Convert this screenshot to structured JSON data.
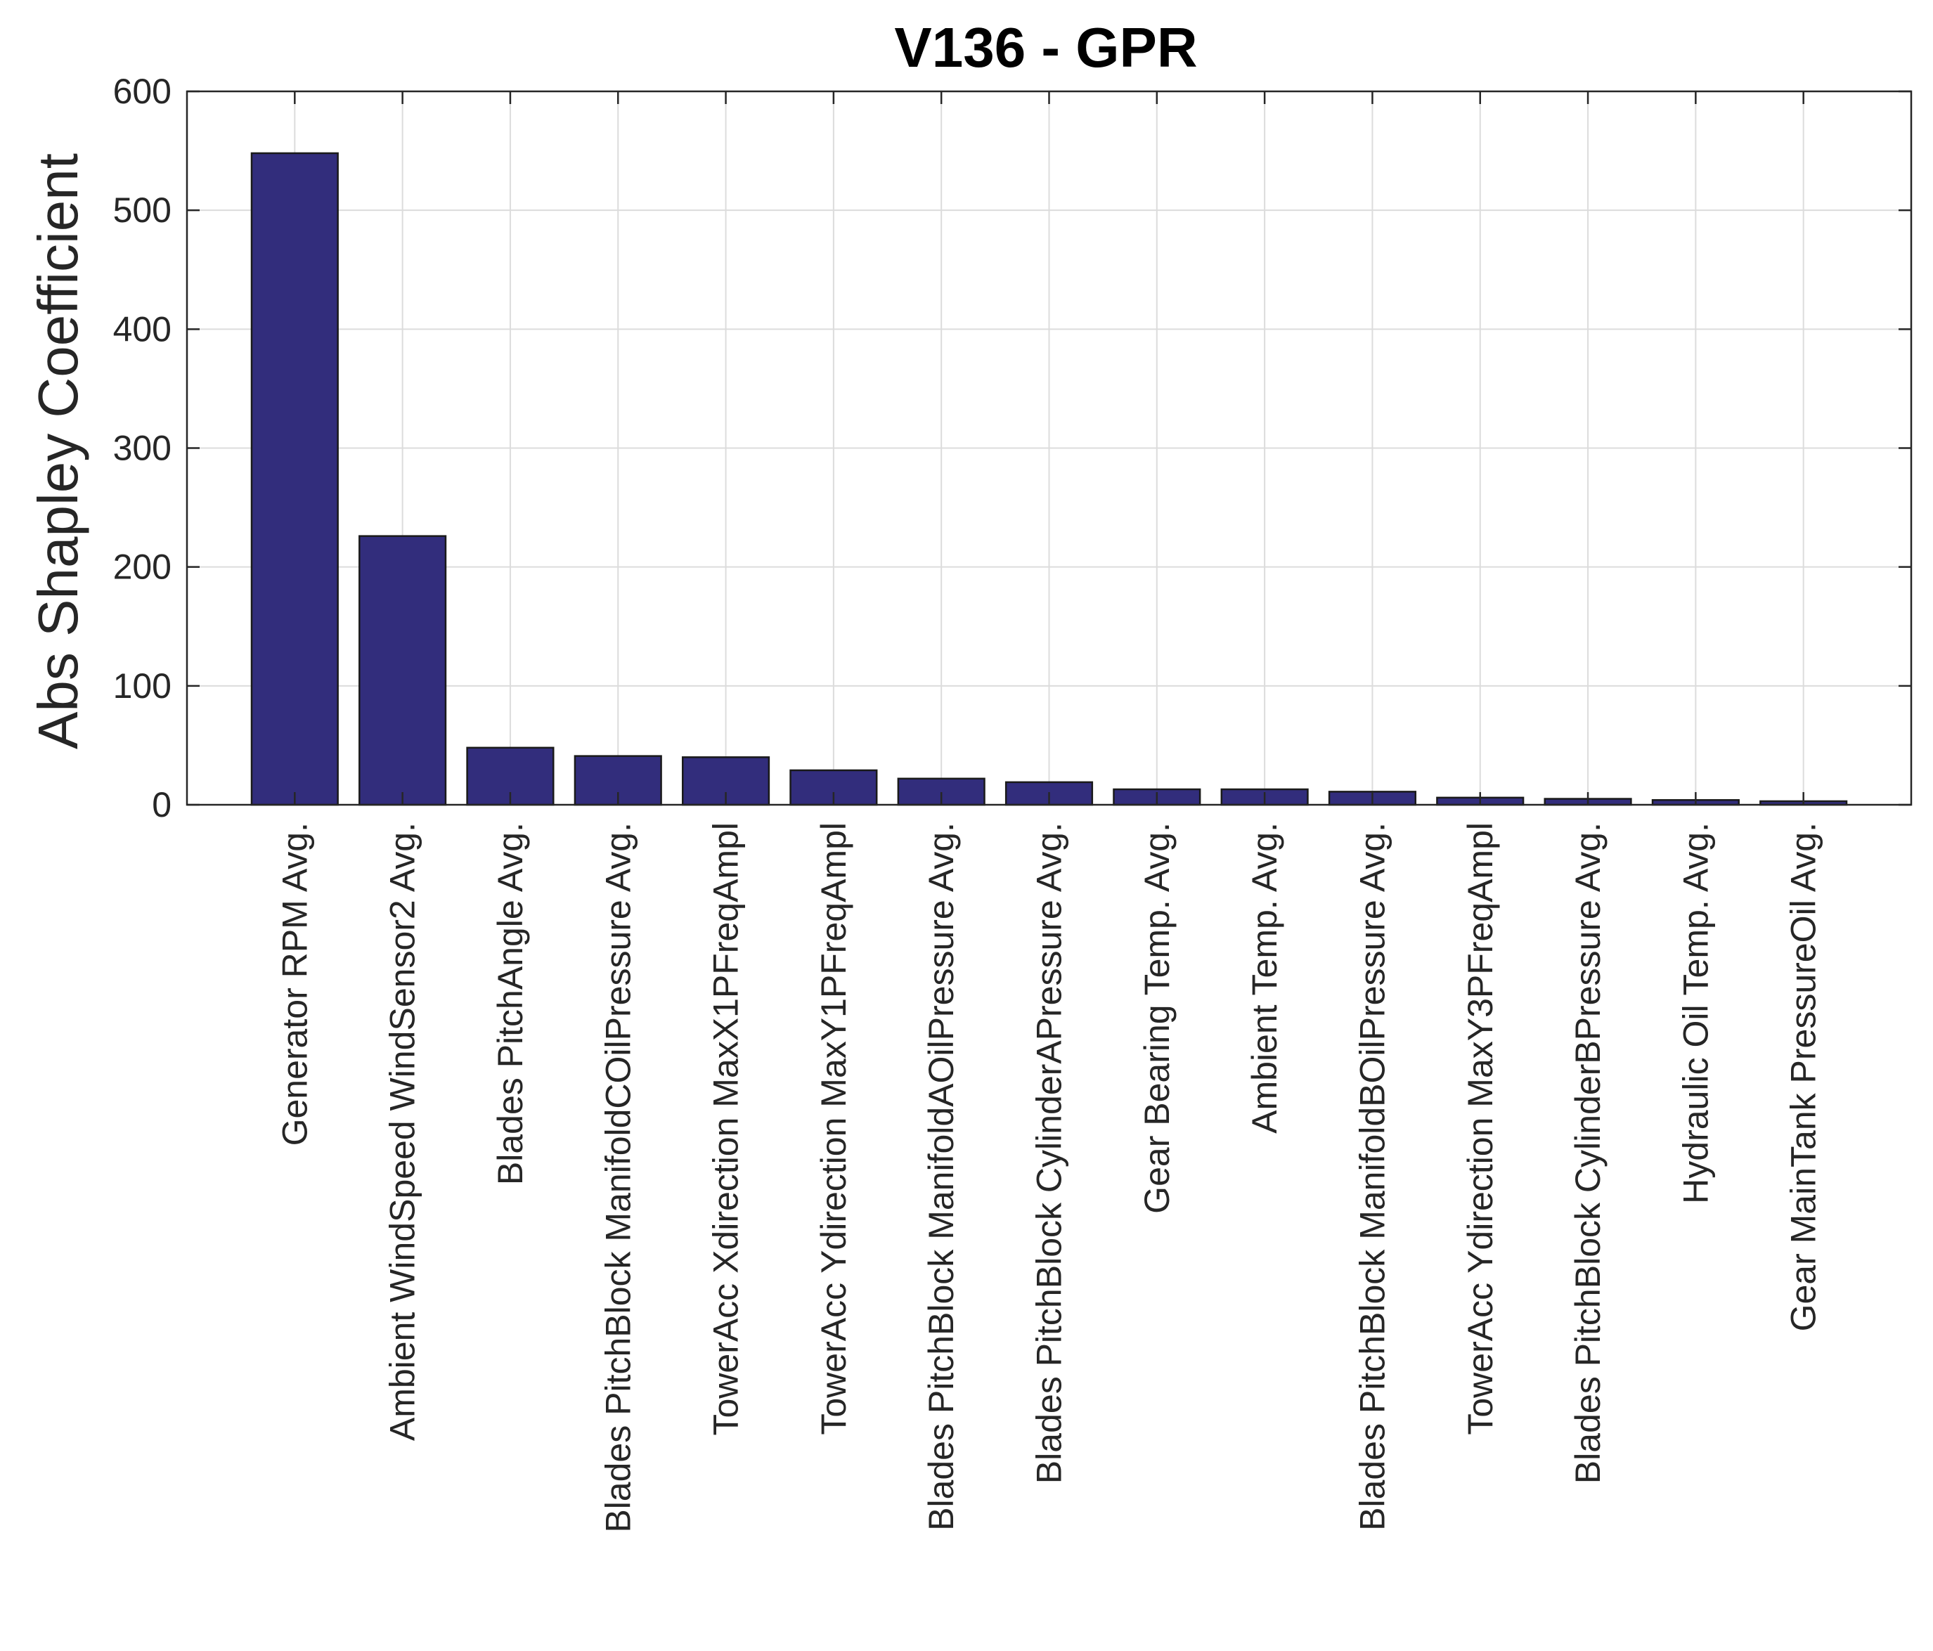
{
  "chart_data": {
    "type": "bar",
    "title": "V136 - GPR",
    "xlabel": "",
    "ylabel": "Abs Shapley Coefficient",
    "ylim": [
      0,
      600
    ],
    "yticks": [
      0,
      100,
      200,
      300,
      400,
      500,
      600
    ],
    "grid": true,
    "bar_color": "#322d7c",
    "categories": [
      "Generator RPM Avg.",
      "Ambient WindSpeed WindSensor2 Avg.",
      "Blades PitchAngle Avg.",
      "Blades PitchBlock ManifoldCOilPressure Avg.",
      "TowerAcc Xdirection MaxX1PFreqAmpl",
      "TowerAcc Ydirection MaxY1PFreqAmpl",
      "Blades PitchBlock ManifoldAOilPressure Avg.",
      "Blades PitchBlock CylinderAPressure Avg.",
      "Gear Bearing Temp. Avg.",
      "Ambient Temp. Avg.",
      "Blades PitchBlock ManifoldBOilPressure Avg.",
      "TowerAcc Ydirection MaxY3PFreqAmpl",
      "Blades PitchBlock CylinderBPressure Avg.",
      "Hydraulic Oil Temp. Avg.",
      "Gear MainTank PressureOil Avg."
    ],
    "values": [
      548,
      226,
      48,
      41,
      40,
      29,
      22,
      19,
      13,
      13,
      11,
      6,
      5,
      4,
      3
    ]
  }
}
